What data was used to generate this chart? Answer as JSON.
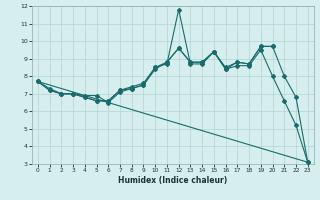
{
  "xlabel": "Humidex (Indice chaleur)",
  "bg_color": "#d7eeee",
  "grid_color": "#b8d8d8",
  "line_color": "#1a6b6b",
  "xlim": [
    -0.5,
    23.5
  ],
  "ylim": [
    3,
    12
  ],
  "xticks": [
    0,
    1,
    2,
    3,
    4,
    5,
    6,
    7,
    8,
    9,
    10,
    11,
    12,
    13,
    14,
    15,
    16,
    17,
    18,
    19,
    20,
    21,
    22,
    23
  ],
  "yticks": [
    3,
    4,
    5,
    6,
    7,
    8,
    9,
    10,
    11,
    12
  ],
  "line1_x": [
    0,
    1,
    2,
    3,
    4,
    5,
    6,
    7,
    8,
    9,
    10,
    11,
    12,
    13,
    14,
    15,
    16,
    17,
    18,
    19,
    20,
    21,
    22,
    23
  ],
  "line1_y": [
    7.7,
    7.2,
    7.0,
    7.0,
    6.9,
    6.9,
    6.5,
    7.1,
    7.3,
    7.5,
    8.5,
    8.7,
    11.8,
    8.7,
    8.7,
    9.4,
    8.4,
    8.6,
    8.6,
    9.5,
    8.0,
    6.6,
    5.2,
    3.1
  ],
  "line2_x": [
    0,
    1,
    2,
    3,
    4,
    5,
    6,
    7,
    8,
    9,
    10,
    11,
    12,
    13,
    14,
    15,
    16,
    17,
    18,
    19,
    20,
    21,
    22,
    23
  ],
  "line2_y": [
    7.7,
    7.2,
    7.0,
    7.0,
    6.8,
    6.6,
    6.6,
    7.2,
    7.3,
    7.5,
    8.4,
    8.8,
    9.6,
    8.8,
    8.8,
    9.4,
    8.4,
    8.8,
    8.7,
    9.7,
    9.7,
    8.0,
    6.8,
    3.1
  ],
  "line3_x": [
    0,
    1,
    2,
    3,
    4,
    5,
    6,
    7,
    8,
    9,
    10,
    11,
    12,
    13,
    14,
    15,
    16,
    17,
    18,
    19,
    20
  ],
  "line3_y": [
    7.7,
    7.3,
    7.0,
    7.0,
    6.8,
    6.6,
    6.6,
    7.2,
    7.4,
    7.6,
    8.5,
    8.8,
    9.6,
    8.8,
    8.8,
    9.4,
    8.5,
    8.8,
    8.7,
    9.7,
    9.7
  ],
  "line4_x": [
    0,
    23
  ],
  "line4_y": [
    7.7,
    3.1
  ]
}
